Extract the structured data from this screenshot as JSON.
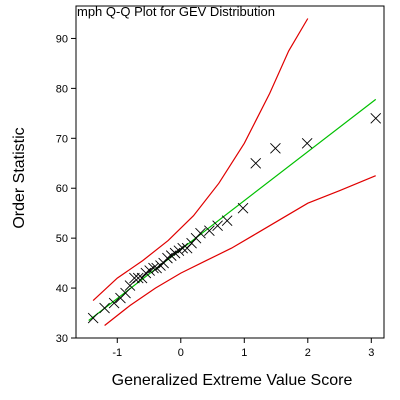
{
  "chart_data": {
    "type": "scatter",
    "title": "mph Q-Q Plot for GEV Distribution",
    "xlabel": "Generalized Extreme Value Score",
    "ylabel": "Order Statistic",
    "xlim": [
      -1.65,
      3.2
    ],
    "ylim": [
      30,
      96.5
    ],
    "x_ticks": [
      -1,
      0,
      1,
      2,
      3
    ],
    "y_ticks": [
      30,
      40,
      50,
      60,
      70,
      80,
      90
    ],
    "grid": false,
    "marker": "x",
    "colors": {
      "points": "#000000",
      "fit_line": "#00c000",
      "bands": "#e00000"
    },
    "points": {
      "x": [
        -1.38,
        -1.2,
        -1.05,
        -0.95,
        -0.87,
        -0.8,
        -0.73,
        -0.67,
        -0.61,
        -0.55,
        -0.49,
        -0.43,
        -0.38,
        -0.32,
        -0.27,
        -0.21,
        -0.15,
        -0.09,
        -0.03,
        0.03,
        0.1,
        0.17,
        0.24,
        0.31,
        0.45,
        0.58,
        0.73,
        0.98,
        1.18,
        1.49,
        1.99,
        3.07
      ],
      "y": [
        34,
        36,
        37,
        38,
        39,
        40.5,
        42,
        42,
        42,
        43,
        43.5,
        44,
        44,
        44.5,
        45,
        46,
        46.5,
        47,
        47.5,
        48,
        48,
        49,
        50,
        51,
        51.5,
        52.5,
        53.5,
        56,
        65,
        68,
        69,
        74
      ]
    },
    "fit_line": {
      "x": [
        -1.45,
        3.07
      ],
      "y": [
        33.5,
        77.8
      ]
    },
    "upper_band": {
      "x": [
        -1.38,
        -1.0,
        -0.6,
        -0.2,
        0.2,
        0.6,
        1.0,
        1.4,
        1.7,
        2.0
      ],
      "y": [
        37.5,
        42.0,
        45.5,
        49.5,
        54.5,
        61.0,
        69.0,
        79.0,
        87.5,
        94.0
      ]
    },
    "lower_band": {
      "x": [
        -1.2,
        -0.8,
        -0.4,
        0.0,
        0.4,
        0.8,
        1.2,
        1.6,
        2.0,
        2.5,
        3.07
      ],
      "y": [
        32.5,
        36.5,
        40.0,
        43.0,
        45.5,
        48.0,
        51.0,
        54.0,
        57.0,
        59.5,
        62.5
      ]
    }
  }
}
